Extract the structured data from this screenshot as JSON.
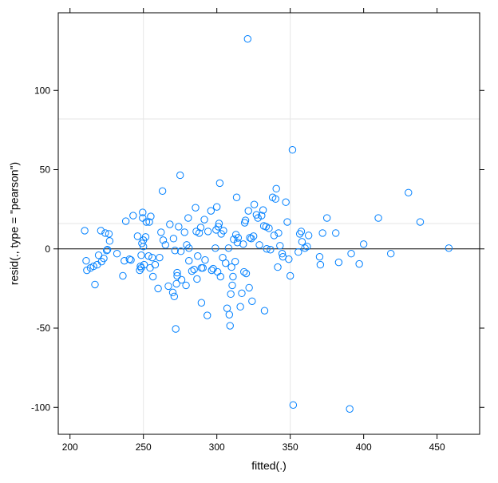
{
  "chart_data": {
    "type": "scatter",
    "title": "",
    "xlabel": "fitted(.)",
    "ylabel": "resid(., type = \"pearson\")",
    "xlim": [
      192,
      479
    ],
    "ylim": [
      -117,
      149
    ],
    "x_ticks": [
      200,
      250,
      300,
      350,
      400,
      450
    ],
    "y_ticks": [
      -100,
      -50,
      0,
      50,
      100
    ],
    "x_tick_labels": [
      "200",
      "250",
      "300",
      "350",
      "400",
      "450"
    ],
    "y_tick_labels": [
      "-100",
      "-50",
      "0",
      "50",
      "100"
    ],
    "x_grid": [
      250,
      350
    ],
    "y_grid": [
      82,
      16
    ],
    "reference_line_y": 0,
    "grid": true,
    "legend": "none",
    "colors": {
      "points": "#0080ff",
      "grid": "#e6e6e6",
      "axis": "#000000",
      "reference_line": "#000000"
    },
    "series": [
      {
        "points": [
          [
            210,
            11.5
          ],
          [
            211,
            -7.5
          ],
          [
            211.5,
            -13.5
          ],
          [
            214,
            -12
          ],
          [
            216,
            -11
          ],
          [
            217,
            -22.5
          ],
          [
            218.5,
            -10
          ],
          [
            219.5,
            -4
          ],
          [
            221,
            11.5
          ],
          [
            221.5,
            -8
          ],
          [
            223,
            -6
          ],
          [
            224,
            10
          ],
          [
            225,
            -1
          ],
          [
            225.5,
            -0.5
          ],
          [
            226.5,
            9.5
          ],
          [
            227,
            5
          ],
          [
            232,
            -3
          ],
          [
            236,
            -17
          ],
          [
            237,
            -7.5
          ],
          [
            238,
            17.5
          ],
          [
            240.5,
            -6.5
          ],
          [
            241.5,
            -7
          ],
          [
            243,
            21
          ],
          [
            246,
            8
          ],
          [
            247.5,
            -13.5
          ],
          [
            248,
            -11
          ],
          [
            248.5,
            -12
          ],
          [
            248.5,
            -4
          ],
          [
            249,
            3.5
          ],
          [
            249.5,
            23
          ],
          [
            249.5,
            19.5
          ],
          [
            250,
            5.5
          ],
          [
            250,
            1.5
          ],
          [
            250.5,
            -10
          ],
          [
            251.5,
            7.5
          ],
          [
            252,
            17
          ],
          [
            253.5,
            -4.5
          ],
          [
            254,
            17
          ],
          [
            254.5,
            -12
          ],
          [
            255,
            20.5
          ],
          [
            256,
            -5.5
          ],
          [
            256.5,
            -17.5
          ],
          [
            258,
            -10
          ],
          [
            260,
            -25
          ],
          [
            261,
            -5.5
          ],
          [
            262,
            10.5
          ],
          [
            263,
            36.5
          ],
          [
            263.5,
            5.5
          ],
          [
            265,
            2.5
          ],
          [
            267,
            -23.5
          ],
          [
            268,
            15.5
          ],
          [
            270,
            -27.5
          ],
          [
            270.5,
            6.5
          ],
          [
            271,
            -30
          ],
          [
            271.5,
            -1
          ],
          [
            272,
            -50.5
          ],
          [
            272.5,
            -22
          ],
          [
            273,
            -17
          ],
          [
            273,
            -15
          ],
          [
            274,
            14
          ],
          [
            275,
            46.5
          ],
          [
            275.5,
            -1.5
          ],
          [
            276,
            -19.5
          ],
          [
            278,
            10.5
          ],
          [
            279,
            -23
          ],
          [
            279.5,
            2.5
          ],
          [
            280.5,
            19.5
          ],
          [
            281,
            0.5
          ],
          [
            281,
            -7.5
          ],
          [
            283,
            -14
          ],
          [
            284.5,
            -13
          ],
          [
            285.5,
            26
          ],
          [
            286,
            11
          ],
          [
            286.5,
            -19
          ],
          [
            287,
            -4.5
          ],
          [
            288,
            10
          ],
          [
            289,
            13.5
          ],
          [
            289.5,
            -12
          ],
          [
            289.5,
            -34
          ],
          [
            290.5,
            -12
          ],
          [
            291.5,
            18.5
          ],
          [
            292,
            -7
          ],
          [
            293.5,
            -42
          ],
          [
            294,
            11
          ],
          [
            296,
            24
          ],
          [
            296.5,
            -13.5
          ],
          [
            297.5,
            -12.5
          ],
          [
            299,
            0.5
          ],
          [
            299.5,
            12
          ],
          [
            300,
            26.5
          ],
          [
            300.5,
            -14.5
          ],
          [
            301,
            14
          ],
          [
            301.5,
            16
          ],
          [
            302,
            41.5
          ],
          [
            302.5,
            -17.5
          ],
          [
            303,
            9.5
          ],
          [
            304,
            -5.5
          ],
          [
            304.5,
            11.5
          ],
          [
            306,
            -9
          ],
          [
            307,
            -37.5
          ],
          [
            308,
            0.5
          ],
          [
            308.5,
            -41.5
          ],
          [
            309,
            -48.5
          ],
          [
            309.5,
            -28.5
          ],
          [
            310,
            -11.5
          ],
          [
            310.5,
            -23
          ],
          [
            311,
            -17.5
          ],
          [
            311.5,
            6
          ],
          [
            312.5,
            -8
          ],
          [
            313,
            9
          ],
          [
            313.5,
            32.5
          ],
          [
            314,
            4
          ],
          [
            314.5,
            7
          ],
          [
            316,
            -36.5
          ],
          [
            317,
            -28
          ],
          [
            318,
            3
          ],
          [
            318.5,
            -14.5
          ],
          [
            319,
            16.5
          ],
          [
            319.5,
            18
          ],
          [
            320,
            -15.5
          ],
          [
            321,
            132.5
          ],
          [
            321.5,
            24
          ],
          [
            322,
            -24.5
          ],
          [
            322.5,
            7
          ],
          [
            323.5,
            6.5
          ],
          [
            324,
            -33
          ],
          [
            325,
            8
          ],
          [
            325.5,
            28
          ],
          [
            327,
            21.5
          ],
          [
            328,
            19.5
          ],
          [
            329,
            2.5
          ],
          [
            330.5,
            21
          ],
          [
            331.5,
            24.5
          ],
          [
            332,
            14.5
          ],
          [
            332.5,
            -39
          ],
          [
            333.5,
            14
          ],
          [
            334,
            0
          ],
          [
            335.5,
            13
          ],
          [
            336.5,
            -0.5
          ],
          [
            338,
            32.5
          ],
          [
            339,
            8.5
          ],
          [
            340,
            31.5
          ],
          [
            340.5,
            38
          ],
          [
            341.5,
            -11.5
          ],
          [
            342,
            10
          ],
          [
            343,
            2
          ],
          [
            344.5,
            -3
          ],
          [
            345,
            -5
          ],
          [
            347,
            29.5
          ],
          [
            348,
            17
          ],
          [
            349,
            -6.5
          ],
          [
            350,
            -17
          ],
          [
            351.5,
            62.5
          ],
          [
            352,
            -98.5
          ],
          [
            355.5,
            -2
          ],
          [
            356.5,
            9.5
          ],
          [
            357.5,
            11
          ],
          [
            358,
            4.5
          ],
          [
            360,
            0.5
          ],
          [
            361.5,
            1.5
          ],
          [
            362.5,
            8.5
          ],
          [
            370,
            -5
          ],
          [
            370.5,
            -10
          ],
          [
            372,
            10
          ],
          [
            375,
            19.5
          ],
          [
            381,
            10
          ],
          [
            383,
            -8.5
          ],
          [
            390.5,
            -101
          ],
          [
            391.5,
            -3
          ],
          [
            397,
            -9.5
          ],
          [
            400,
            3
          ],
          [
            410,
            19.5
          ],
          [
            418.5,
            -3
          ],
          [
            430.5,
            35.5
          ],
          [
            438.5,
            17
          ],
          [
            458,
            0.5
          ]
        ]
      }
    ]
  }
}
